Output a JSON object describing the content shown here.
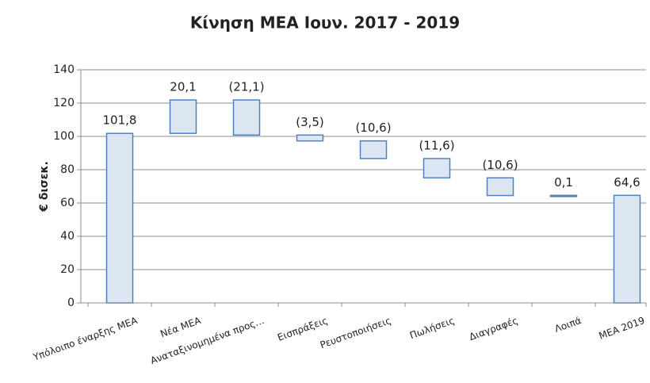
{
  "chart_data": {
    "type": "waterfall",
    "title": "Κίνηση ΜΕΑ Ιουν. 2017 - 2019",
    "y_label": "€ δισεκ.",
    "categories": [
      "Υπόλοιπο έναρξης ΜΕΑ",
      "Νέα ΜΕΑ",
      "Αναταξινομημένα προς…",
      "Εισπράξεις",
      "Ρευστοποιήσεις",
      "Πωλήσεις",
      "Διαγραφές",
      "Λοιπά",
      "ΜΕΑ 2019"
    ],
    "values": [
      101.8,
      20.1,
      -21.1,
      -3.5,
      -10.6,
      -11.6,
      -10.6,
      0.1,
      64.6
    ],
    "value_labels": [
      "101,8",
      "20,1",
      "(21,1)",
      "(3,5)",
      "(10,6)",
      "(11,6)",
      "(10,6)",
      "0,1",
      "64,6"
    ],
    "color": "#dce6f2",
    "edge_color": "#4f81bd",
    "ylim": [
      0,
      140
    ],
    "yticks": [
      0,
      20,
      40,
      60,
      80,
      100,
      120,
      140
    ],
    "grid": true
  }
}
